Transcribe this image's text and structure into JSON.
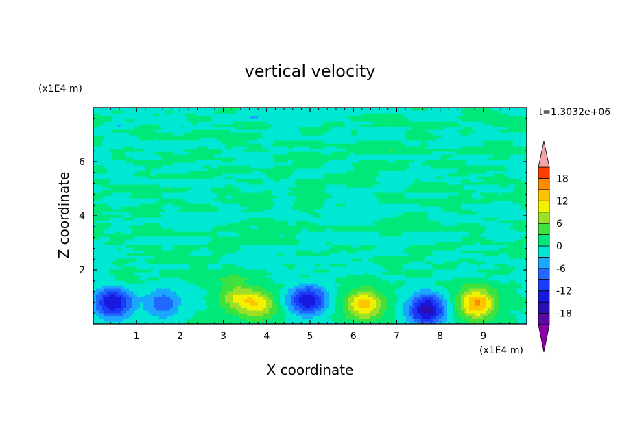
{
  "chart_data": {
    "type": "heatmap",
    "title": "vertical velocity",
    "xlabel": "X coordinate",
    "ylabel": "Z coordinate",
    "x_unit": "(x1E4 m)",
    "y_unit": "(x1E4 m)",
    "time_label": "t=1.3032e+06",
    "xlim": [
      0,
      10
    ],
    "ylim": [
      0,
      8
    ],
    "x_ticks": [
      "1",
      "2",
      "3",
      "4",
      "5",
      "6",
      "7",
      "8",
      "9"
    ],
    "y_ticks": [
      "2",
      "4",
      "6"
    ],
    "x_tick_values": [
      1,
      2,
      3,
      4,
      5,
      6,
      7,
      8,
      9
    ],
    "y_tick_values": [
      2,
      4,
      6
    ],
    "colorbar": {
      "labels": [
        "18",
        "12",
        "6",
        "0",
        "-6",
        "-12",
        "-18"
      ],
      "label_values": [
        18,
        12,
        6,
        0,
        -6,
        -12,
        -18
      ],
      "levels": [
        -21,
        -18,
        -15,
        -12,
        -9,
        -6,
        -3,
        0,
        3,
        6,
        9,
        12,
        15,
        18,
        21
      ],
      "colors": [
        "#5a0a9e",
        "#2b0fb5",
        "#1818e0",
        "#1b3cf7",
        "#2168ff",
        "#1aa8ff",
        "#00e8d4",
        "#00e87a",
        "#3ee23e",
        "#9cdf26",
        "#f2f200",
        "#ffc400",
        "#ff8c00",
        "#ff3c00",
        "#e80000",
        "#ee9aa6"
      ],
      "under_color": "#8a00aa",
      "over_color": "#f0a3a8"
    },
    "cells": [
      {
        "x": 0.45,
        "z": 0.8,
        "value": -15,
        "note": "downdraft"
      },
      {
        "x": 1.6,
        "z": 0.75,
        "value": -8,
        "note": "downdraft"
      },
      {
        "x": 3.3,
        "z": 1.0,
        "value": 8,
        "note": "updraft"
      },
      {
        "x": 3.8,
        "z": 0.75,
        "value": 10,
        "note": "updraft"
      },
      {
        "x": 4.95,
        "z": 0.9,
        "value": -15,
        "note": "downdraft"
      },
      {
        "x": 6.25,
        "z": 0.75,
        "value": 14,
        "note": "updraft"
      },
      {
        "x": 7.7,
        "z": 0.55,
        "value": -17,
        "note": "downdraft"
      },
      {
        "x": 8.85,
        "z": 0.75,
        "value": 16,
        "note": "updraft"
      }
    ],
    "background_upper": {
      "value_range": [
        -3,
        3
      ],
      "pattern": "horizontal bands near zero above z=2"
    }
  }
}
